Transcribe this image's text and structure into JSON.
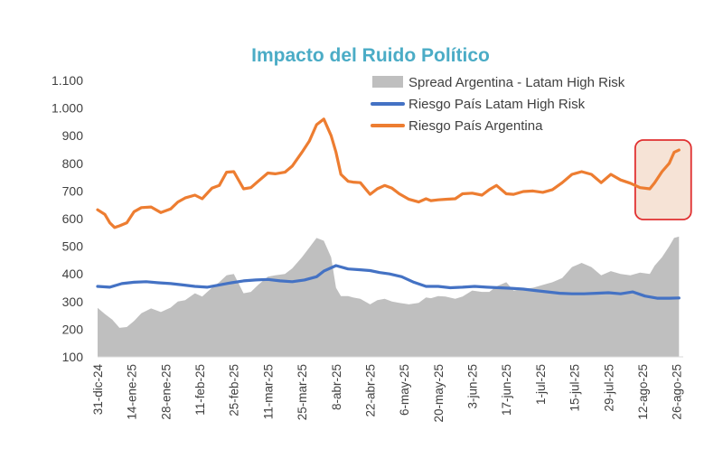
{
  "chart_data": {
    "type": "line",
    "title": "Impacto del Ruido Político",
    "xlabel": "",
    "ylabel": "",
    "ylim": [
      100,
      1100
    ],
    "yticks": [
      100,
      200,
      300,
      400,
      500,
      600,
      700,
      800,
      900,
      1000,
      1100
    ],
    "ytick_labels": [
      "100",
      "200",
      "300",
      "400",
      "500",
      "600",
      "700",
      "800",
      "900",
      "1.000",
      "1.100"
    ],
    "x_tick_labels": [
      "31-dic-24",
      "14-ene-25",
      "28-ene-25",
      "11-feb-25",
      "25-feb-25",
      "11-mar-25",
      "25-mar-25",
      "8-abr-25",
      "22-abr-25",
      "6-may-25",
      "20-may-25",
      "3-jun-25",
      "17-jun-25",
      "1-jul-25",
      "15-jul-25",
      "29-jul-25",
      "12-ago-25",
      "26-ago-25"
    ],
    "x_tick_days": [
      0,
      14,
      28,
      42,
      56,
      70,
      84,
      98,
      112,
      126,
      140,
      154,
      168,
      182,
      196,
      210,
      224,
      238
    ],
    "x_range_days": [
      0,
      240
    ],
    "legend": [
      "Spread Argentina - Latam High Risk",
      "Riesgo País Latam High Risk",
      "Riesgo País Argentina"
    ],
    "legend_position": "top-right",
    "highlight_range_days": [
      221,
      244
    ],
    "colors": {
      "spread": "#bfbfbf",
      "latam": "#4472c4",
      "argentina": "#ed7d31",
      "highlight_border": "#e03030",
      "highlight_fill": "#f6e3d6",
      "title": "#4bacc6"
    },
    "series": [
      {
        "name": "Riesgo País Argentina",
        "days": [
          0,
          3,
          5,
          7,
          9,
          12,
          15,
          18,
          22,
          26,
          30,
          33,
          36,
          40,
          43,
          47,
          50,
          53,
          56,
          60,
          63,
          66,
          70,
          73,
          77,
          80,
          84,
          87,
          90,
          93,
          96,
          98,
          100,
          103,
          105,
          108,
          112,
          115,
          118,
          121,
          124,
          128,
          132,
          135,
          137,
          140,
          143,
          147,
          150,
          154,
          158,
          161,
          164,
          168,
          171,
          175,
          179,
          183,
          187,
          191,
          195,
          199,
          203,
          207,
          211,
          215,
          219,
          223,
          227,
          229,
          232,
          235,
          237,
          239
        ],
        "values": [
          632,
          615,
          585,
          568,
          574,
          585,
          625,
          640,
          642,
          622,
          635,
          660,
          675,
          685,
          672,
          710,
          720,
          768,
          770,
          708,
          712,
          735,
          765,
          762,
          768,
          790,
          840,
          880,
          940,
          960,
          900,
          840,
          760,
          735,
          732,
          730,
          688,
          708,
          720,
          710,
          690,
          670,
          660,
          672,
          665,
          668,
          670,
          672,
          690,
          692,
          685,
          705,
          720,
          690,
          688,
          698,
          700,
          695,
          705,
          730,
          760,
          770,
          760,
          730,
          760,
          740,
          728,
          712,
          708,
          730,
          770,
          800,
          840,
          848
        ]
      },
      {
        "name": "Riesgo País Latam High Risk",
        "days": [
          0,
          5,
          10,
          15,
          20,
          25,
          30,
          35,
          40,
          45,
          50,
          55,
          60,
          65,
          70,
          75,
          80,
          85,
          90,
          93,
          98,
          103,
          108,
          112,
          116,
          120,
          125,
          130,
          135,
          140,
          145,
          150,
          155,
          160,
          165,
          170,
          175,
          180,
          185,
          190,
          195,
          200,
          205,
          210,
          215,
          220,
          225,
          230,
          235,
          239
        ],
        "values": [
          355,
          352,
          365,
          370,
          372,
          368,
          365,
          360,
          355,
          352,
          360,
          368,
          375,
          378,
          380,
          375,
          372,
          378,
          390,
          410,
          430,
          418,
          415,
          412,
          405,
          400,
          390,
          370,
          355,
          355,
          350,
          352,
          355,
          352,
          350,
          348,
          345,
          340,
          335,
          330,
          328,
          328,
          330,
          332,
          328,
          335,
          320,
          312,
          312,
          313
        ]
      },
      {
        "name": "Spread Argentina - Latam High Risk",
        "days": [
          0,
          3,
          6,
          9,
          12,
          15,
          18,
          22,
          26,
          30,
          33,
          36,
          40,
          43,
          47,
          50,
          53,
          56,
          60,
          63,
          66,
          70,
          73,
          77,
          80,
          84,
          87,
          90,
          93,
          96,
          98,
          100,
          103,
          105,
          108,
          112,
          115,
          118,
          121,
          124,
          128,
          132,
          135,
          137,
          140,
          143,
          147,
          150,
          154,
          158,
          161,
          164,
          168,
          171,
          175,
          179,
          183,
          187,
          191,
          195,
          199,
          203,
          207,
          211,
          215,
          219,
          223,
          227,
          229,
          232,
          235,
          237,
          239
        ],
        "values": [
          277,
          255,
          235,
          205,
          208,
          230,
          258,
          275,
          262,
          278,
          300,
          305,
          330,
          318,
          350,
          370,
          395,
          400,
          330,
          335,
          360,
          390,
          395,
          400,
          420,
          460,
          495,
          530,
          520,
          460,
          350,
          320,
          320,
          315,
          310,
          290,
          305,
          310,
          300,
          295,
          290,
          295,
          315,
          312,
          320,
          318,
          310,
          318,
          340,
          335,
          335,
          355,
          370,
          340,
          345,
          350,
          360,
          370,
          385,
          425,
          440,
          425,
          395,
          410,
          400,
          395,
          405,
          400,
          430,
          460,
          500,
          530,
          535
        ]
      }
    ]
  }
}
